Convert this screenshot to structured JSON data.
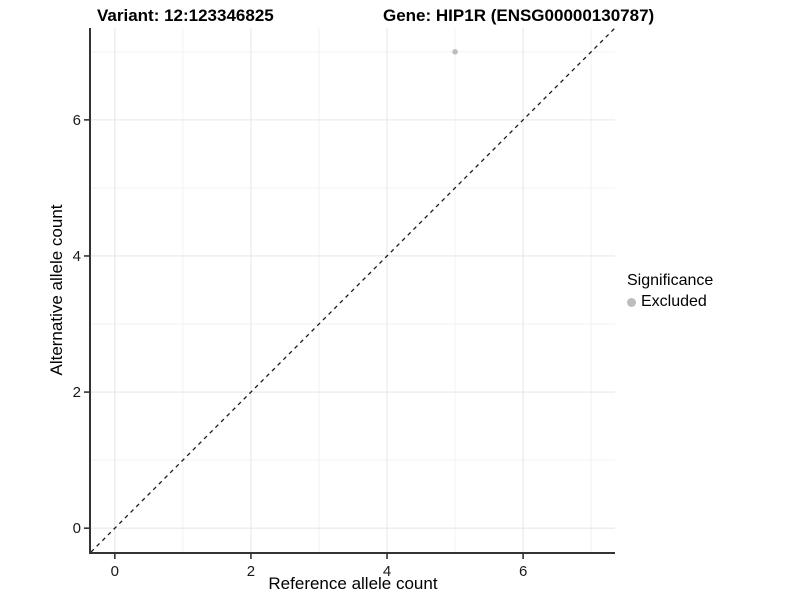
{
  "titles": {
    "variant": "Variant: 12:123346825",
    "gene": "Gene: HIP1R (ENSG00000130787)"
  },
  "chart_data": {
    "type": "scatter",
    "xlabel": "Reference allele count",
    "ylabel": "Alternative allele count",
    "xlim": [
      -0.35,
      7.35
    ],
    "ylim": [
      -0.35,
      7.35
    ],
    "x_major_ticks": [
      0,
      2,
      4,
      6
    ],
    "y_major_ticks": [
      0,
      2,
      4,
      6
    ],
    "x_minor_ticks": [
      1,
      3,
      5,
      7
    ],
    "y_minor_ticks": [
      1,
      3,
      5,
      7
    ],
    "grid": true,
    "reference_line": {
      "slope": 1,
      "intercept": 0,
      "style": "dashed"
    },
    "series": [
      {
        "name": "Excluded",
        "color": "#bdbdbd",
        "points": [
          {
            "x": 5,
            "y": 7
          }
        ]
      }
    ],
    "legend": {
      "title": "Significance",
      "position": "right",
      "items": [
        {
          "label": "Excluded",
          "color": "#bdbdbd"
        }
      ]
    }
  },
  "colors": {
    "grid_major": "#e8e8e8",
    "grid_minor": "#f2f2f2",
    "axis_line": "#333333",
    "tick_text": "#1a1a1a",
    "reference_line": "#1a1a1a"
  }
}
